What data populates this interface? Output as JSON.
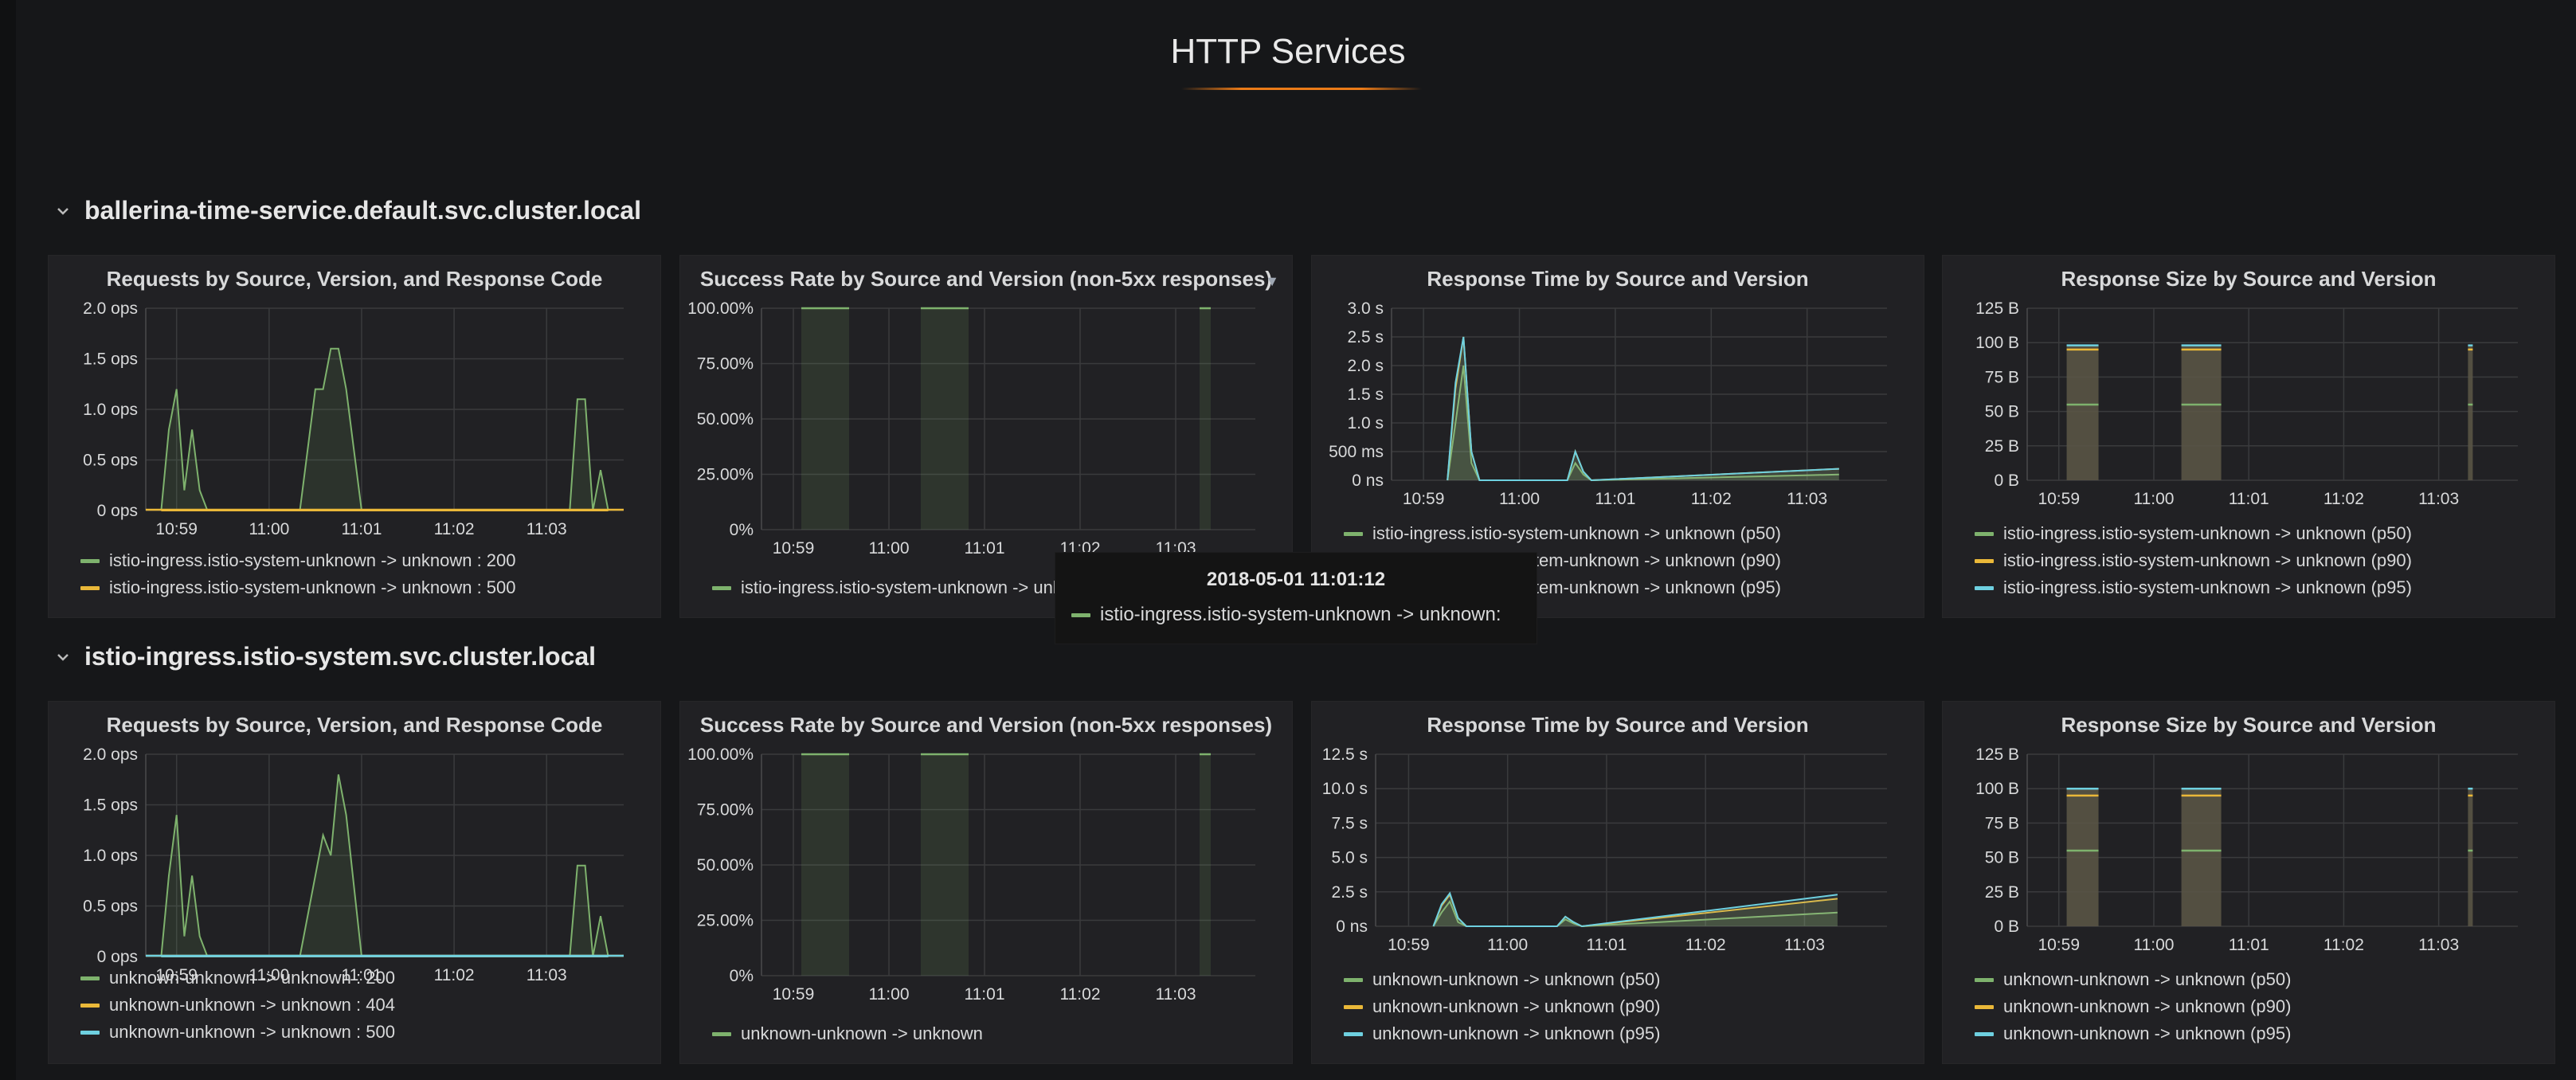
{
  "dashboard": {
    "title": "HTTP Services"
  },
  "colors": {
    "green": "#7eb26d",
    "orange": "#eab839",
    "cyan": "#6ed0e0",
    "accent": "#eb7b18"
  },
  "rows": [
    {
      "name": "ballerina-time-service.default.svc.cluster.local",
      "panels": [
        {
          "title": "Requests by Source, Version, and Response Code",
          "yticks": [
            "2.0 ops",
            "1.5 ops",
            "1.0 ops",
            "0.5 ops",
            "0 ops"
          ],
          "xticks": [
            "10:59",
            "11:00",
            "11:01",
            "11:02",
            "11:03"
          ],
          "legend": [
            {
              "label": "istio-ingress.istio-system-unknown -> unknown : 200",
              "color": "green"
            },
            {
              "label": "istio-ingress.istio-system-unknown -> unknown : 500",
              "color": "orange"
            }
          ]
        },
        {
          "title": "Success Rate by Source and Version (non-5xx responses)",
          "yticks": [
            "100.00%",
            "75.00%",
            "50.00%",
            "25.00%",
            "0%"
          ],
          "xticks": [
            "10:59",
            "11:00",
            "11:01",
            "11:02",
            "11:03"
          ],
          "legend": [
            {
              "label": "istio-ingress.istio-system-unknown -> unknown",
              "color": "green"
            }
          ]
        },
        {
          "title": "Response Time by Source and Version",
          "yticks": [
            "3.0 s",
            "2.5 s",
            "2.0 s",
            "1.5 s",
            "1.0 s",
            "500 ms",
            "0 ns"
          ],
          "xticks": [
            "10:59",
            "11:00",
            "11:01",
            "11:02",
            "11:03"
          ],
          "legend": [
            {
              "label": "istio-ingress.istio-system-unknown -> unknown (p50)",
              "color": "green"
            },
            {
              "label": "istio-ingress.istio-system-unknown -> unknown (p90)",
              "color": "orange"
            },
            {
              "label": "istio-ingress.istio-system-unknown -> unknown (p95)",
              "color": "cyan"
            }
          ]
        },
        {
          "title": "Response Size by Source and Version",
          "yticks": [
            "125 B",
            "100 B",
            "75 B",
            "50 B",
            "25 B",
            "0 B"
          ],
          "xticks": [
            "10:59",
            "11:00",
            "11:01",
            "11:02",
            "11:03"
          ],
          "legend": [
            {
              "label": "istio-ingress.istio-system-unknown -> unknown (p50)",
              "color": "green"
            },
            {
              "label": "istio-ingress.istio-system-unknown -> unknown (p90)",
              "color": "orange"
            },
            {
              "label": "istio-ingress.istio-system-unknown -> unknown (p95)",
              "color": "cyan"
            }
          ]
        }
      ]
    },
    {
      "name": "istio-ingress.istio-system.svc.cluster.local",
      "panels": [
        {
          "title": "Requests by Source, Version, and Response Code",
          "yticks": [
            "2.0 ops",
            "1.5 ops",
            "1.0 ops",
            "0.5 ops",
            "0 ops"
          ],
          "xticks": [
            "10:59",
            "11:00",
            "11:01",
            "11:02",
            "11:03"
          ],
          "legend": [
            {
              "label": "unknown-unknown -> unknown : 200",
              "color": "green"
            },
            {
              "label": "unknown-unknown -> unknown : 404",
              "color": "orange"
            },
            {
              "label": "unknown-unknown -> unknown : 500",
              "color": "cyan"
            }
          ]
        },
        {
          "title": "Success Rate by Source and Version (non-5xx responses)",
          "yticks": [
            "100.00%",
            "75.00%",
            "50.00%",
            "25.00%",
            "0%"
          ],
          "xticks": [
            "10:59",
            "11:00",
            "11:01",
            "11:02",
            "11:03"
          ],
          "legend": [
            {
              "label": "unknown-unknown -> unknown",
              "color": "green"
            }
          ]
        },
        {
          "title": "Response Time by Source and Version",
          "yticks": [
            "12.5 s",
            "10.0 s",
            "7.5 s",
            "5.0 s",
            "2.5 s",
            "0 ns"
          ],
          "xticks": [
            "10:59",
            "11:00",
            "11:01",
            "11:02",
            "11:03"
          ],
          "legend": [
            {
              "label": "unknown-unknown -> unknown (p50)",
              "color": "green"
            },
            {
              "label": "unknown-unknown -> unknown (p90)",
              "color": "orange"
            },
            {
              "label": "unknown-unknown -> unknown (p95)",
              "color": "cyan"
            }
          ]
        },
        {
          "title": "Response Size by Source and Version",
          "yticks": [
            "125 B",
            "100 B",
            "75 B",
            "50 B",
            "25 B",
            "0 B"
          ],
          "xticks": [
            "10:59",
            "11:00",
            "11:01",
            "11:02",
            "11:03"
          ],
          "legend": [
            {
              "label": "unknown-unknown -> unknown (p50)",
              "color": "green"
            },
            {
              "label": "unknown-unknown -> unknown (p90)",
              "color": "orange"
            },
            {
              "label": "unknown-unknown -> unknown (p95)",
              "color": "cyan"
            }
          ]
        }
      ]
    }
  ],
  "tooltip": {
    "time": "2018-05-01 11:01:12",
    "series": "istio-ingress.istio-system-unknown -> unknown:"
  },
  "chart_data": [
    {
      "type": "line",
      "title": "Requests by Source, Version, and Response Code",
      "x": [
        "10:58:50",
        "10:58:55",
        "10:59:00",
        "10:59:05",
        "10:59:10",
        "10:59:15",
        "10:59:20",
        "10:59:25",
        "10:59:35",
        "11:00:20",
        "11:00:30",
        "11:00:35",
        "11:00:40",
        "11:00:45",
        "11:00:50",
        "11:01:00",
        "11:03:15",
        "11:03:20",
        "11:03:25",
        "11:03:30",
        "11:03:35",
        "11:03:40"
      ],
      "series": [
        {
          "name": "istio-ingress.istio-system-unknown -> unknown : 200",
          "values": [
            0,
            0.8,
            1.2,
            0.2,
            0.8,
            0.2,
            0,
            0,
            0,
            0,
            1.2,
            1.2,
            1.6,
            1.6,
            1.2,
            0,
            0,
            1.1,
            1.1,
            0,
            0.4,
            0
          ]
        },
        {
          "name": "istio-ingress.istio-system-unknown -> unknown : 500",
          "values": [
            0,
            0,
            0,
            0,
            0,
            0,
            0,
            0,
            0,
            0,
            0,
            0,
            0,
            0,
            0,
            0,
            0,
            0,
            0,
            0,
            0,
            0
          ]
        }
      ],
      "ylim": [
        0,
        2.0
      ]
    },
    {
      "type": "area",
      "title": "Success Rate by Source and Version (non-5xx responses)",
      "x": [
        "10:59:10",
        "10:59:30",
        "11:00:25",
        "11:00:45",
        "11:03:20"
      ],
      "series": [
        {
          "name": "istio-ingress.istio-system-unknown -> unknown",
          "values": [
            100,
            100,
            100,
            100,
            100
          ]
        }
      ],
      "ylim": [
        0,
        100
      ]
    },
    {
      "type": "line",
      "title": "Response Time by Source and Version",
      "x": [
        "10:59:15",
        "10:59:20",
        "10:59:25",
        "10:59:30",
        "10:59:35",
        "11:00:30",
        "11:00:35",
        "11:00:40",
        "11:00:45",
        "11:03:20"
      ],
      "series": [
        {
          "name": "istio-ingress.istio-system-unknown -> unknown (p50)",
          "values": [
            0,
            1.0,
            2.0,
            0.3,
            0,
            0,
            0.3,
            0.1,
            0,
            0.1
          ]
        },
        {
          "name": "istio-ingress.istio-system-unknown -> unknown (p90)",
          "values": [
            0,
            1.6,
            2.5,
            0.5,
            0,
            0,
            0.5,
            0.15,
            0,
            0.2
          ]
        },
        {
          "name": "istio-ingress.istio-system-unknown -> unknown (p95)",
          "values": [
            0,
            1.7,
            2.5,
            0.5,
            0,
            0,
            0.5,
            0.15,
            0,
            0.2
          ]
        }
      ],
      "ylim": [
        0,
        3.0
      ]
    },
    {
      "type": "bar",
      "title": "Response Size by Source and Version",
      "categories": [
        "10:59:15",
        "11:00:30",
        "11:03:20"
      ],
      "series": [
        {
          "name": "istio-ingress.istio-system-unknown -> unknown (p50)",
          "values": [
            55,
            55,
            55
          ]
        },
        {
          "name": "istio-ingress.istio-system-unknown -> unknown (p90)",
          "values": [
            95,
            95,
            95
          ]
        },
        {
          "name": "istio-ingress.istio-system-unknown -> unknown (p95)",
          "values": [
            98,
            98,
            98
          ]
        }
      ],
      "ylim": [
        0,
        125
      ]
    },
    {
      "type": "line",
      "title": "Requests by Source, Version, and Response Code",
      "x": [
        "10:58:50",
        "10:58:55",
        "10:59:00",
        "10:59:05",
        "10:59:10",
        "10:59:15",
        "10:59:20",
        "11:00:20",
        "11:00:30",
        "11:00:35",
        "11:00:40",
        "11:00:45",
        "11:00:50",
        "11:01:00",
        "11:03:15",
        "11:03:20",
        "11:03:25",
        "11:03:30",
        "11:03:35",
        "11:03:40"
      ],
      "series": [
        {
          "name": "unknown-unknown -> unknown : 200",
          "values": [
            0,
            0.8,
            1.4,
            0.2,
            0.8,
            0.2,
            0,
            0,
            0.8,
            1.2,
            1.0,
            1.8,
            1.4,
            0,
            0,
            0.9,
            0.9,
            0,
            0.4,
            0
          ]
        },
        {
          "name": "unknown-unknown -> unknown : 404",
          "values": [
            0,
            0,
            0,
            0,
            0,
            0,
            0,
            0,
            0,
            0,
            0,
            0,
            0,
            0,
            0,
            0,
            0,
            0,
            0,
            0
          ]
        },
        {
          "name": "unknown-unknown -> unknown : 500",
          "values": [
            0,
            0,
            0,
            0,
            0,
            0,
            0,
            0,
            0,
            0,
            0,
            0,
            0,
            0,
            0,
            0,
            0,
            0,
            0,
            0
          ]
        }
      ],
      "ylim": [
        0,
        2.0
      ]
    },
    {
      "type": "area",
      "title": "Success Rate by Source and Version (non-5xx responses)",
      "x": [
        "10:59:10",
        "10:59:30",
        "11:00:25",
        "11:00:45",
        "11:03:20"
      ],
      "series": [
        {
          "name": "unknown-unknown -> unknown",
          "values": [
            100,
            100,
            100,
            100,
            100
          ]
        }
      ],
      "ylim": [
        0,
        100
      ]
    },
    {
      "type": "line",
      "title": "Response Time by Source and Version",
      "x": [
        "10:59:15",
        "10:59:20",
        "10:59:25",
        "10:59:30",
        "10:59:35",
        "11:00:30",
        "11:00:35",
        "11:00:40",
        "11:00:45",
        "11:03:20"
      ],
      "series": [
        {
          "name": "unknown-unknown -> unknown (p50)",
          "values": [
            0,
            1.0,
            1.8,
            0.3,
            0,
            0,
            0.5,
            0.2,
            0,
            1.0
          ]
        },
        {
          "name": "unknown-unknown -> unknown (p90)",
          "values": [
            0,
            1.5,
            2.3,
            0.6,
            0,
            0,
            0.7,
            0.3,
            0,
            2.0
          ]
        },
        {
          "name": "unknown-unknown -> unknown (p95)",
          "values": [
            0,
            1.6,
            2.4,
            0.6,
            0,
            0,
            0.7,
            0.3,
            0,
            2.3
          ]
        }
      ],
      "ylim": [
        0,
        12.5
      ]
    },
    {
      "type": "bar",
      "title": "Response Size by Source and Version",
      "categories": [
        "10:59:15",
        "11:00:30",
        "11:03:20"
      ],
      "series": [
        {
          "name": "unknown-unknown -> unknown (p50)",
          "values": [
            55,
            55,
            55
          ]
        },
        {
          "name": "unknown-unknown -> unknown (p90)",
          "values": [
            95,
            95,
            95
          ]
        },
        {
          "name": "unknown-unknown -> unknown (p95)",
          "values": [
            100,
            100,
            100
          ]
        }
      ],
      "ylim": [
        0,
        125
      ]
    }
  ]
}
